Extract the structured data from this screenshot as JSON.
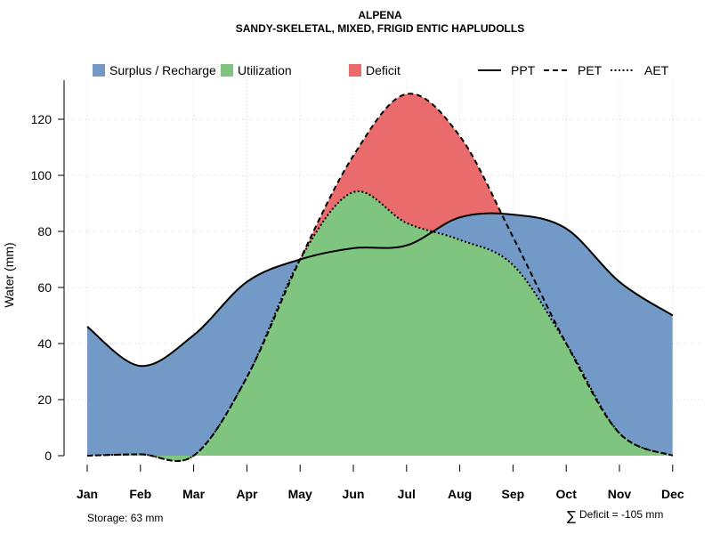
{
  "chart_data": {
    "type": "area",
    "title": "ALPENA",
    "subtitle": "SANDY-SKELETAL, MIXED, FRIGID ENTIC HAPLUDOLLS",
    "xlabel": "",
    "ylabel": "Water (mm)",
    "ylim": [
      0,
      130
    ],
    "yticks": [
      0,
      20,
      40,
      60,
      80,
      100,
      120
    ],
    "categories": [
      "Jan",
      "Feb",
      "Mar",
      "Apr",
      "May",
      "Jun",
      "Jul",
      "Aug",
      "Sep",
      "Oct",
      "Nov",
      "Dec"
    ],
    "grid": true,
    "legend_position": "top",
    "series": [
      {
        "name": "PPT",
        "style": "solid",
        "values": [
          46,
          32,
          43,
          62,
          70,
          74,
          75,
          85,
          86,
          81,
          62,
          50
        ]
      },
      {
        "name": "PET",
        "style": "dashed",
        "values": [
          0,
          0.5,
          0,
          28,
          70,
          107,
          129,
          114,
          78,
          40,
          8,
          0
        ]
      },
      {
        "name": "AET",
        "style": "dotted",
        "values": [
          0,
          0.5,
          0,
          28,
          70,
          94,
          83,
          77,
          68,
          40,
          8,
          0
        ]
      }
    ],
    "fill_legend": [
      {
        "name": "Surplus / Recharge",
        "color": "#7399c6"
      },
      {
        "name": "Utilization",
        "color": "#7fc47f"
      },
      {
        "name": "Deficit",
        "color": "#ea6b6b"
      }
    ],
    "annotations": {
      "storage": "Storage: 63 mm",
      "deficit_symbol": "∑",
      "deficit": "Deficit = -105 mm"
    }
  }
}
